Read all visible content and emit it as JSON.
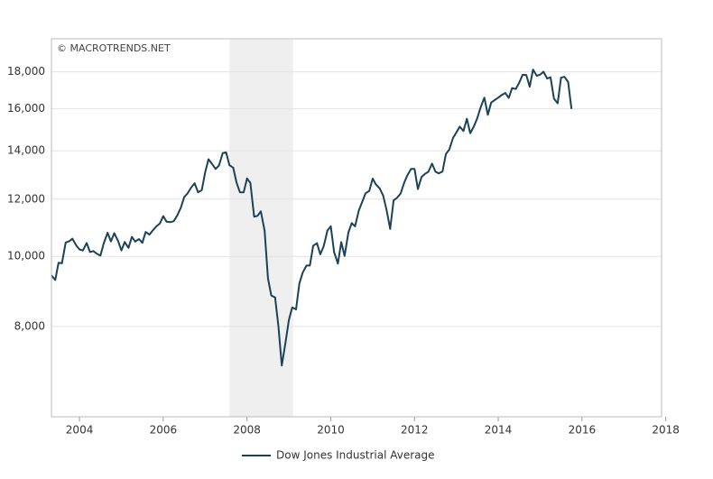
{
  "chart_data": {
    "type": "line",
    "watermark": "© MACROTRENDS.NET",
    "log_y": true,
    "grid": true,
    "legend": "bottom",
    "xlim": [
      2003.33,
      2017.9
    ],
    "ylim": [
      6000,
      20000
    ],
    "xticks": [
      2004,
      2006,
      2008,
      2010,
      2012,
      2014,
      2016,
      2018
    ],
    "yticks": [
      {
        "value": 8000,
        "label": "8,000"
      },
      {
        "value": 10000,
        "label": "10,000"
      },
      {
        "value": 12000,
        "label": "12,000"
      },
      {
        "value": 14000,
        "label": "14,000"
      },
      {
        "value": 16000,
        "label": "16,000"
      },
      {
        "value": 18000,
        "label": "18,000"
      }
    ],
    "shade": [
      2007.58,
      2009.1
    ],
    "shade_color": "#efefef",
    "x": [
      2003.33,
      2003.42,
      2003.5,
      2003.58,
      2003.67,
      2003.75,
      2003.83,
      2003.92,
      2004.0,
      2004.08,
      2004.17,
      2004.25,
      2004.33,
      2004.42,
      2004.5,
      2004.58,
      2004.67,
      2004.75,
      2004.83,
      2004.92,
      2005.0,
      2005.08,
      2005.17,
      2005.25,
      2005.33,
      2005.42,
      2005.5,
      2005.58,
      2005.67,
      2005.75,
      2005.83,
      2005.92,
      2006.0,
      2006.08,
      2006.17,
      2006.25,
      2006.33,
      2006.42,
      2006.5,
      2006.58,
      2006.67,
      2006.75,
      2006.83,
      2006.92,
      2007.0,
      2007.08,
      2007.17,
      2007.25,
      2007.33,
      2007.42,
      2007.5,
      2007.58,
      2007.67,
      2007.75,
      2007.83,
      2007.92,
      2008.0,
      2008.08,
      2008.17,
      2008.25,
      2008.33,
      2008.42,
      2008.5,
      2008.58,
      2008.67,
      2008.75,
      2008.83,
      2008.92,
      2009.0,
      2009.08,
      2009.17,
      2009.25,
      2009.33,
      2009.42,
      2009.5,
      2009.58,
      2009.67,
      2009.75,
      2009.83,
      2009.92,
      2010.0,
      2010.08,
      2010.17,
      2010.25,
      2010.33,
      2010.42,
      2010.5,
      2010.58,
      2010.67,
      2010.75,
      2010.83,
      2010.92,
      2011.0,
      2011.08,
      2011.17,
      2011.25,
      2011.33,
      2011.42,
      2011.5,
      2011.58,
      2011.67,
      2011.75,
      2011.83,
      2011.92,
      2012.0,
      2012.08,
      2012.17,
      2012.25,
      2012.33,
      2012.42,
      2012.5,
      2012.58,
      2012.67,
      2012.75,
      2012.83,
      2012.92,
      2013.0,
      2013.08,
      2013.17,
      2013.25,
      2013.33,
      2013.42,
      2013.5,
      2013.58,
      2013.67,
      2013.75,
      2013.83,
      2013.92,
      2014.0,
      2014.08,
      2014.17,
      2014.25,
      2014.33,
      2014.42,
      2014.5,
      2014.58,
      2014.67,
      2014.75,
      2014.83,
      2014.92,
      2015.0,
      2015.08,
      2015.17,
      2015.25,
      2015.33,
      2015.42,
      2015.5,
      2015.58,
      2015.67,
      2015.75
    ],
    "series": [
      {
        "name": "Dow Jones Industrial Average",
        "color": "#1b4257",
        "values": [
          9415,
          9275,
          9801,
          9782,
          10453,
          10488,
          10583,
          10357,
          10225,
          10188,
          10435,
          10139,
          10173,
          10080,
          10027,
          10428,
          10783,
          10489,
          10766,
          10503,
          10192,
          10467,
          10275,
          10641,
          10482,
          10568,
          10440,
          10806,
          10718,
          10865,
          10993,
          11109,
          11367,
          11168,
          11150,
          11186,
          11381,
          11679,
          12081,
          12222,
          12463,
          12622,
          12268,
          12354,
          13063,
          13628,
          13409,
          13212,
          13358,
          13896,
          13930,
          13372,
          13265,
          12650,
          12266,
          12263,
          12820,
          12638,
          11350,
          11378,
          11544,
          10851,
          9325,
          8829,
          8776,
          8001,
          7063,
          7609,
          8168,
          8500,
          8447,
          9172,
          9496,
          9712,
          9713,
          10345,
          10428,
          10067,
          10325,
          10857,
          11009,
          10137,
          9774,
          10466,
          10015,
          10788,
          11118,
          11006,
          11578,
          11892,
          12226,
          12320,
          12811,
          12570,
          12414,
          12143,
          11614,
          10913,
          11955,
          12046,
          12218,
          12633,
          12952,
          13212,
          13214,
          12393,
          12880,
          13009,
          13091,
          13437,
          13096,
          13026,
          13104,
          13861,
          14054,
          14579,
          14840,
          15116,
          14910,
          15500,
          14810,
          15130,
          15546,
          16086,
          16577,
          15699,
          16322,
          16458,
          16581,
          16717,
          16827,
          16563,
          17098,
          17043,
          17391,
          17828,
          17823,
          17165,
          18133,
          17776,
          17841,
          18011,
          17620,
          17690,
          16528,
          16285,
          17664,
          17720,
          17425,
          16000
        ]
      }
    ]
  }
}
